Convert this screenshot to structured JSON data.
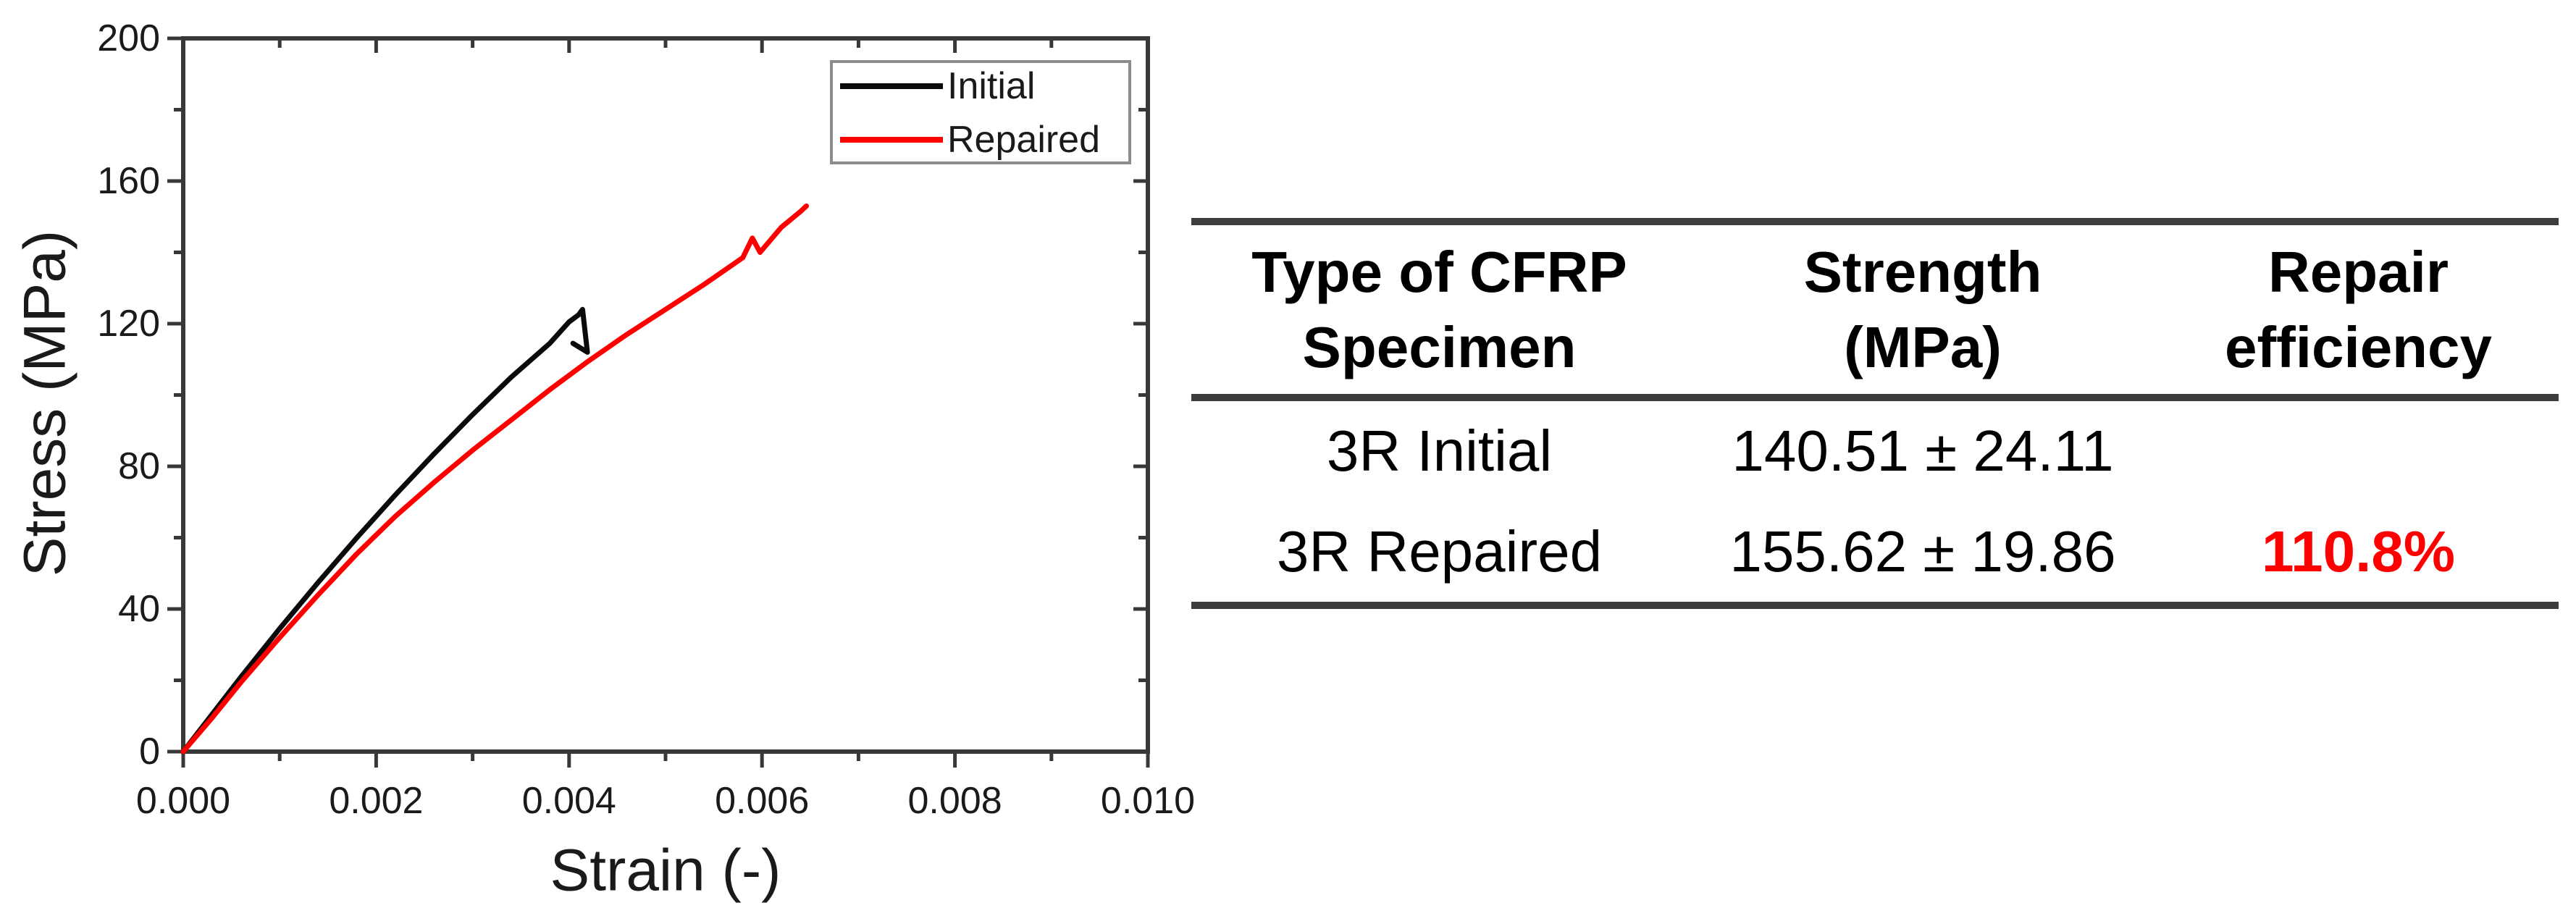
{
  "figure": {
    "background": "#ffffff"
  },
  "chart": {
    "frame_color": "#383838",
    "text_color": "#1a1a1a",
    "legend_border_color": "#8c8c8c"
  },
  "chart_data": {
    "type": "line",
    "title": "",
    "xlabel": "Strain (-)",
    "ylabel": "Stress (MPa)",
    "xlim": [
      0.0,
      0.01
    ],
    "ylim": [
      0,
      200
    ],
    "grid": false,
    "legend_position": "top-right-inside",
    "x_ticks": {
      "values": [
        0,
        0.002,
        0.004,
        0.006,
        0.008,
        0.01
      ],
      "labels": [
        "0.000",
        "0.002",
        "0.004",
        "0.006",
        "0.008",
        "0.010"
      ],
      "minor_values": [
        0.001,
        0.003,
        0.005,
        0.007,
        0.009
      ]
    },
    "y_ticks": {
      "values": [
        0,
        40,
        80,
        120,
        160,
        200
      ],
      "labels": [
        "0",
        "40",
        "80",
        "120",
        "160",
        "200"
      ],
      "minor_values": [
        20,
        60,
        100,
        140,
        180
      ]
    },
    "series": [
      {
        "name": "Initial",
        "color": "#0a0a0a",
        "x": [
          0,
          0.0003,
          0.0006,
          0.001,
          0.0014,
          0.0018,
          0.0022,
          0.0026,
          0.003,
          0.0034,
          0.0038,
          0.004,
          0.0041,
          0.00414,
          0.00419,
          0.00404
        ],
        "y": [
          0,
          10.5,
          21,
          34.5,
          47.5,
          60,
          72,
          83.5,
          94.5,
          105,
          114.5,
          120.5,
          122.5,
          124,
          112,
          114.5
        ]
      },
      {
        "name": "Repaired",
        "color": "#fe0000",
        "x": [
          0,
          0.0003,
          0.0006,
          0.001,
          0.0014,
          0.0018,
          0.0022,
          0.0026,
          0.003,
          0.0034,
          0.0038,
          0.0042,
          0.0046,
          0.005,
          0.0054,
          0.0058,
          0.0059,
          0.00598,
          0.0062,
          0.0064,
          0.00646
        ],
        "y": [
          0,
          9.5,
          19.5,
          32,
          44,
          55.5,
          66,
          75.5,
          84.5,
          93,
          101.5,
          109.5,
          117,
          124,
          131,
          138.5,
          144,
          140,
          147,
          151.5,
          153
        ]
      }
    ],
    "annotations": {
      "initial_peak_stress": 124,
      "initial_failure_strain": 0.00414,
      "repaired_peak_stress": 153,
      "repaired_failure_strain": 0.0065
    }
  },
  "table": {
    "headers": [
      {
        "line1": "Type of CFRP",
        "line2": "Specimen"
      },
      {
        "line1": "Strength",
        "line2": "(MPa)"
      },
      {
        "line1": "Repair",
        "line2": "efficiency"
      }
    ],
    "rows": [
      {
        "specimen": "3R Initial",
        "strength": "140.51 ± 24.11",
        "efficiency": ""
      },
      {
        "specimen": "3R Repaired",
        "strength": "155.62 ± 19.86",
        "efficiency": "110.8%"
      }
    ],
    "highlight_color": "#ff0000",
    "rule_color": "#3d3d3d"
  }
}
